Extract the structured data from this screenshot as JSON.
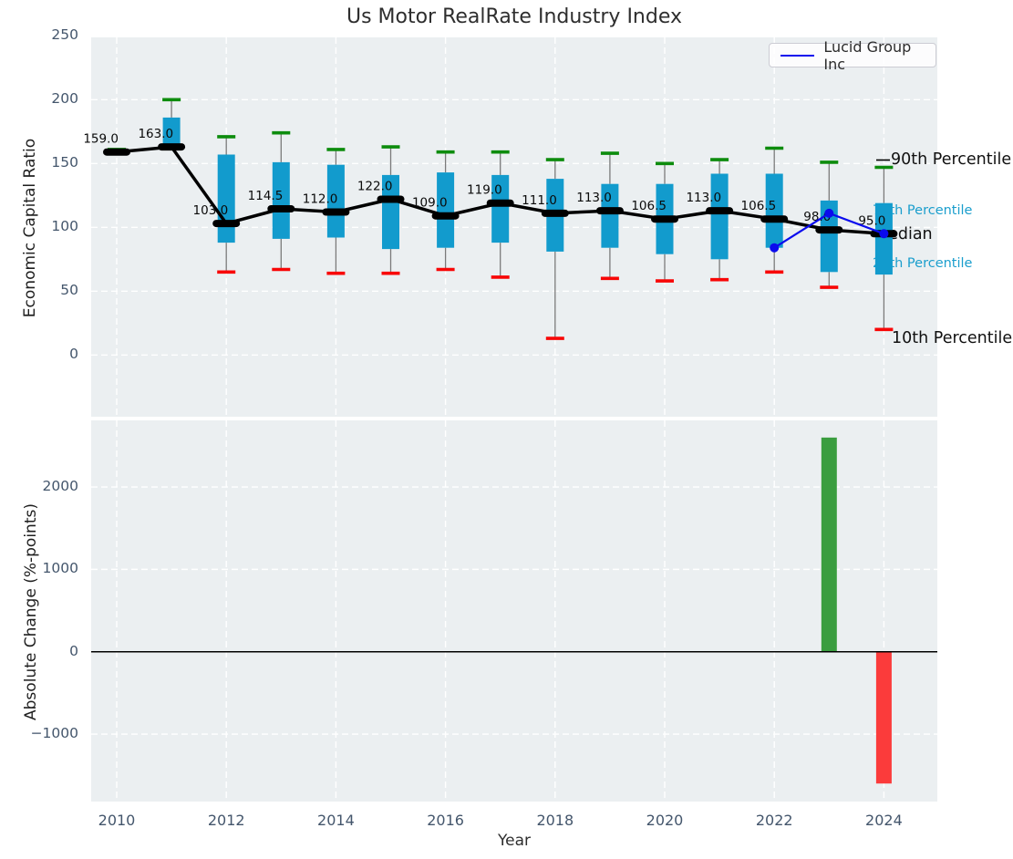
{
  "title": "Us Motor RealRate Industry Index",
  "legend": {
    "label": "Lucid Group Inc"
  },
  "axis_labels": {
    "top_y": "Economic Capital Ratio",
    "bottom_y": "Absolute Change (%-points)",
    "x": "Year"
  },
  "annotations": [
    {
      "id": "p90",
      "text": "90th Percentile",
      "color": "#111111",
      "size": "large"
    },
    {
      "id": "p75",
      "text": "75th Percentile",
      "color": "#1b9ecd",
      "size": "small"
    },
    {
      "id": "median",
      "text": "Median",
      "color": "#111111",
      "size": "large"
    },
    {
      "id": "p25",
      "text": "25th Percentile",
      "color": "#1b9ecd",
      "size": "small"
    },
    {
      "id": "p10",
      "text": "10th Percentile",
      "color": "#111111",
      "size": "large"
    }
  ],
  "colors": {
    "box_fill": "#129bcd",
    "p90_cap": "#0d8c0d",
    "p10_cap": "#f80606",
    "whisker": "#7a7a7a",
    "median": "#000000",
    "lucid_line": "#0b0bee",
    "bar_positive": "#3a9d3f",
    "bar_negative": "#fb3b3b",
    "percentile_text": "#1b9ecd",
    "gridline": "#ffffff",
    "plot_background": "#ebeff1",
    "tick_text": "#44566c"
  },
  "chart_data": [
    {
      "type": "boxplot",
      "title": "Us Motor RealRate Industry Index",
      "ylabel": "Economic Capital Ratio",
      "ylim": [
        -48,
        249
      ],
      "yticks": [
        0,
        50,
        100,
        150,
        200,
        250
      ],
      "xticks": [
        2010,
        2012,
        2014,
        2016,
        2018,
        2020,
        2022,
        2024
      ],
      "categories": [
        2010,
        2011,
        2012,
        2013,
        2014,
        2015,
        2016,
        2017,
        2018,
        2019,
        2020,
        2021,
        2022,
        2023,
        2024
      ],
      "grid": true,
      "legend_position": "upper right",
      "boxes": [
        {
          "year": 2010,
          "p10": null,
          "q1": null,
          "median": 159.0,
          "q3": null,
          "p90": 161
        },
        {
          "year": 2011,
          "p10": null,
          "q1": null,
          "median": 163.0,
          "q3": 186,
          "p90": 200
        },
        {
          "year": 2012,
          "p10": 65,
          "q1": 88,
          "median": 103.0,
          "q3": 157,
          "p90": 171
        },
        {
          "year": 2013,
          "p10": 67,
          "q1": 91,
          "median": 114.5,
          "q3": 151,
          "p90": 174
        },
        {
          "year": 2014,
          "p10": 64,
          "q1": 92,
          "median": 112.0,
          "q3": 149,
          "p90": 161
        },
        {
          "year": 2015,
          "p10": 64,
          "q1": 83,
          "median": 122.0,
          "q3": 141,
          "p90": 163
        },
        {
          "year": 2016,
          "p10": 67,
          "q1": 84,
          "median": 109.0,
          "q3": 143,
          "p90": 159
        },
        {
          "year": 2017,
          "p10": 61,
          "q1": 88,
          "median": 119.0,
          "q3": 141,
          "p90": 159
        },
        {
          "year": 2018,
          "p10": 13,
          "q1": 81,
          "median": 111.0,
          "q3": 138,
          "p90": 153
        },
        {
          "year": 2019,
          "p10": 60,
          "q1": 84,
          "median": 113.0,
          "q3": 134,
          "p90": 158
        },
        {
          "year": 2020,
          "p10": 58,
          "q1": 79,
          "median": 106.5,
          "q3": 134,
          "p90": 150
        },
        {
          "year": 2021,
          "p10": 59,
          "q1": 75,
          "median": 113.0,
          "q3": 142,
          "p90": 153
        },
        {
          "year": 2022,
          "p10": 65,
          "q1": 84,
          "median": 106.5,
          "q3": 142,
          "p90": 162
        },
        {
          "year": 2023,
          "p10": 53,
          "q1": 65,
          "median": 98.0,
          "q3": 121,
          "p90": 151
        },
        {
          "year": 2024,
          "p10": 20,
          "q1": 63,
          "median": 95.0,
          "q3": 119,
          "p90": 147
        }
      ],
      "series": [
        {
          "name": "Lucid Group Inc",
          "x": [
            2022,
            2023,
            2024
          ],
          "y": [
            84,
            111,
            95
          ]
        }
      ]
    },
    {
      "type": "bar",
      "ylabel": "Absolute Change (%-points)",
      "xlabel": "Year",
      "ylim": [
        -1818,
        2819
      ],
      "yticks": [
        -1000,
        0,
        1000,
        2000
      ],
      "xticks": [
        2010,
        2012,
        2014,
        2016,
        2018,
        2020,
        2022,
        2024
      ],
      "grid": true,
      "categories": [
        2023,
        2024
      ],
      "values": [
        2600,
        -1600
      ]
    }
  ]
}
